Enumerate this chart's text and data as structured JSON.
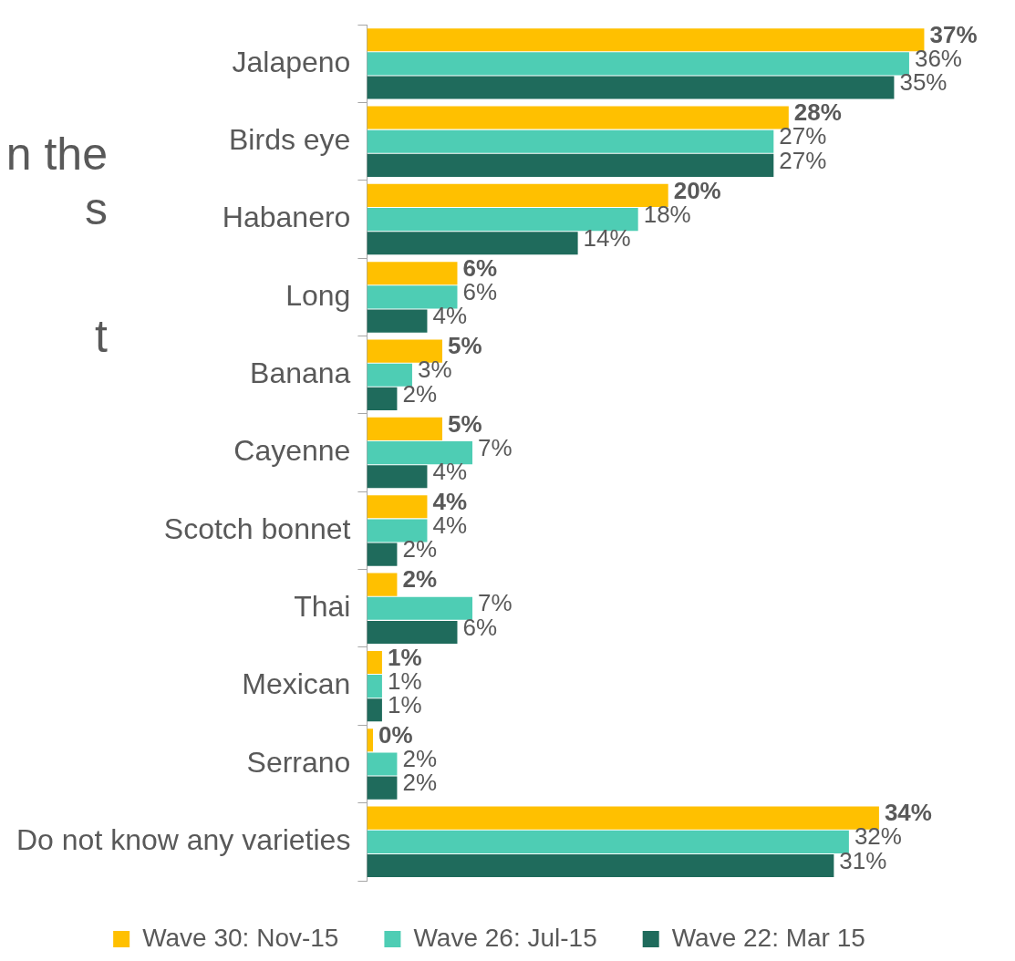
{
  "chart_data": {
    "type": "bar",
    "orientation": "horizontal",
    "categories": [
      "Jalapeno",
      "Birds eye",
      "Habanero",
      "Long",
      "Banana",
      "Cayenne",
      "Scotch bonnet",
      "Thai",
      "Mexican",
      "Serrano",
      "Do not know any varieties"
    ],
    "series": [
      {
        "name": "Wave 30: Nov-15",
        "color": "#ffc000",
        "values": [
          37,
          28,
          20,
          6,
          5,
          5,
          4,
          2,
          1,
          0.4,
          34
        ],
        "value_labels": [
          "37%",
          "28%",
          "20%",
          "6%",
          "5%",
          "5%",
          "4%",
          "2%",
          "1%",
          "0%",
          "34%"
        ]
      },
      {
        "name": "Wave 26: Jul-15",
        "color": "#4ecdb4",
        "values": [
          36,
          27,
          18,
          6,
          3,
          7,
          4,
          7,
          1,
          2,
          32
        ],
        "value_labels": [
          "36%",
          "27%",
          "18%",
          "6%",
          "3%",
          "7%",
          "4%",
          "7%",
          "1%",
          "2%",
          "32%"
        ]
      },
      {
        "name": "Wave 22: Mar 15",
        "color": "#1f6b5c",
        "values": [
          35,
          27,
          14,
          4,
          2,
          4,
          2,
          6,
          1,
          2,
          31
        ],
        "value_labels": [
          "35%",
          "27%",
          "14%",
          "4%",
          "2%",
          "4%",
          "2%",
          "6%",
          "1%",
          "2%",
          "31%"
        ]
      }
    ],
    "legend": "bottom",
    "grid": false,
    "tick_labels": "y",
    "annotations": [
      "n the",
      "s",
      "t"
    ]
  }
}
